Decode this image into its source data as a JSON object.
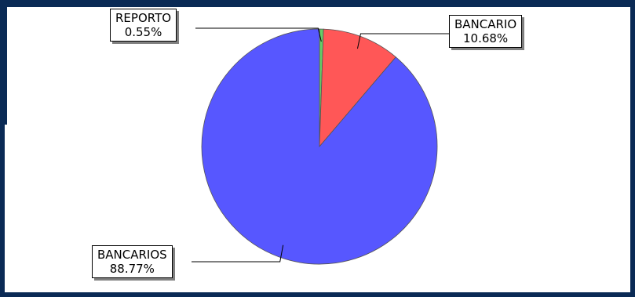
{
  "colors": {
    "frame": "#0a2a55",
    "bancarios": "#5757ff",
    "bancario": "#ff5757",
    "reporto": "#66cc66"
  },
  "chart_data": {
    "type": "pie",
    "title": "",
    "slices": [
      {
        "name": "REPORTO",
        "value": 0.55,
        "label": "0.55%",
        "color": "#66cc66"
      },
      {
        "name": "BANCARIO",
        "value": 10.68,
        "label": "10.68%",
        "color": "#ff5757"
      },
      {
        "name": "BANCARIOS",
        "value": 88.77,
        "label": "88.77%",
        "color": "#5757ff"
      }
    ]
  }
}
